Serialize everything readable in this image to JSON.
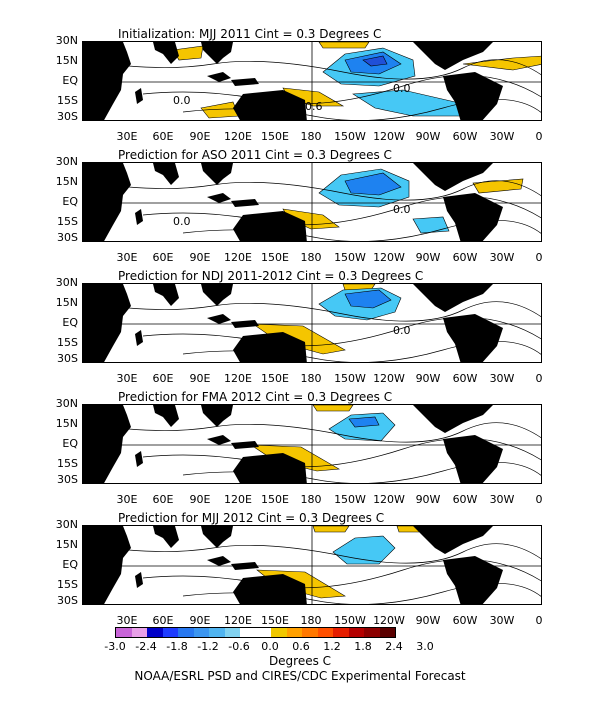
{
  "panels": [
    {
      "title": "Initialization: MJJ 2011  Cint = 0.3 Degrees C",
      "labels": [
        "0.0",
        "0.0",
        "0.0",
        "0.6"
      ]
    },
    {
      "title": "Prediction for ASO 2011  Cint = 0.3 Degrees C",
      "labels": [
        "0.0",
        "0.0",
        "0.0"
      ]
    },
    {
      "title": "Prediction for NDJ 2011-2012  Cint = 0.3 Degrees C",
      "labels": [
        "0.0",
        "0.0"
      ]
    },
    {
      "title": "Prediction for FMA 2012  Cint = 0.3 Degrees C",
      "labels": []
    },
    {
      "title": "Prediction for MJJ 2012  Cint = 0.3 Degrees C",
      "labels": [
        "0.0"
      ]
    }
  ],
  "lat_labels": [
    "30N",
    "15N",
    "EQ",
    "15S",
    "30S"
  ],
  "lon_labels": [
    "30E",
    "60E",
    "90E",
    "120E",
    "150E",
    "180",
    "150W",
    "120W",
    "90W",
    "60W",
    "30W",
    "0"
  ],
  "colorbar": {
    "colors": [
      "#c864d8",
      "#e8a0e8",
      "#0000c8",
      "#1e3cff",
      "#2878f0",
      "#3c96f0",
      "#50b4f0",
      "#82d2f0",
      "#ffffff",
      "#ffffff",
      "#f0c800",
      "#ffa000",
      "#ff7800",
      "#ff5000",
      "#e61e00",
      "#b40000",
      "#8c0000",
      "#5a0000"
    ],
    "ticks": [
      "-3.0",
      "-2.4",
      "-1.8",
      "-1.2",
      "-0.6",
      "0.0",
      "0.6",
      "1.2",
      "1.8",
      "2.4",
      "3.0"
    ],
    "units": "Degrees C"
  },
  "credit": "NOAA/ESRL PSD and CIRES/CDC Experimental Forecast"
}
